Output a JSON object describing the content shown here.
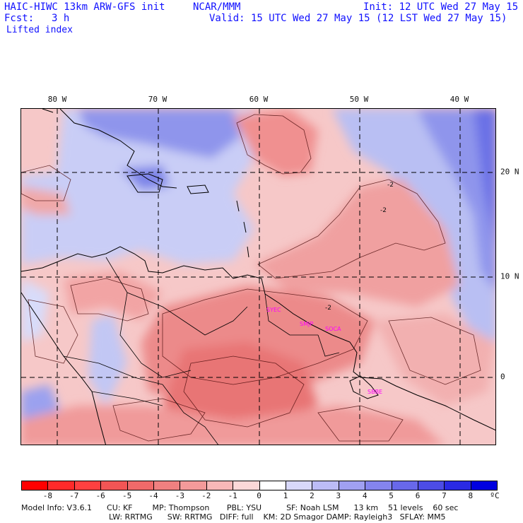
{
  "header": {
    "title": "HAIC-HIWC 13km ARW-GFS init",
    "org": "NCAR/MMM",
    "init": "Init: 12 UTC Wed 27 May 15",
    "fcst_label": "Fcst:",
    "fcst_value": "3 h",
    "valid": "Valid: 15 UTC Wed 27 May 15 (12 LST Wed 27 May 15)",
    "field": "Lifted index"
  },
  "axes": {
    "lon_labels": [
      "80 W",
      "70 W",
      "60 W",
      "50 W",
      "40 W"
    ],
    "lat_labels": [
      "20 N",
      "10 N",
      "0"
    ]
  },
  "stations": [
    "SYEC",
    "SMJP",
    "SOCA",
    "SBBE"
  ],
  "colorbar": {
    "labels": [
      "-8",
      "-7",
      "-6",
      "-5",
      "-4",
      "-3",
      "-2",
      "-1",
      "0",
      "1",
      "2",
      "3",
      "4",
      "5",
      "6",
      "7",
      "8"
    ],
    "unit": "ºC",
    "colors": [
      "#ff0000",
      "#ff2a2a",
      "#ff4040",
      "#f25555",
      "#f06a6a",
      "#f08080",
      "#f49a9a",
      "#f8b8b8",
      "#fcd8d8",
      "#ffffff",
      "#d8d8fa",
      "#bcbcf6",
      "#a0a0f2",
      "#8484ee",
      "#6868ea",
      "#4c4ce6",
      "#2a2ae4",
      "#0000e0"
    ]
  },
  "model_info": {
    "line1": "Model Info: V3.6.1      CU: KF        MP: Thompson       PBL: YSU          SF: Noah LSM      13 km    51 levels    60 sec",
    "line2": "LW: RRTMG      SW: RRTMG   DIFF: full    KM: 2D Smagor DAMP: Rayleigh3   SFLAY: MM5"
  },
  "contour_labels": [
    "-2",
    "-2",
    "-2"
  ]
}
